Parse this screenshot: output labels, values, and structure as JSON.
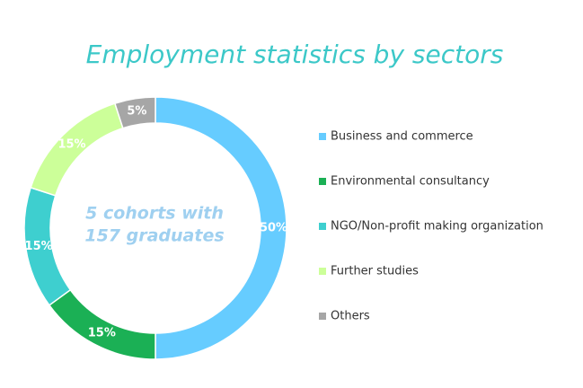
{
  "chart_data": {
    "type": "donut",
    "title": "Employment statistics by sectors",
    "center_text": [
      "5 cohorts with",
      "157 graduates"
    ],
    "categories": [
      "Business and commerce",
      "Environmental consultancy",
      "NGO/Non-profit making organization",
      "Further studies",
      "Others"
    ],
    "values": [
      50,
      15,
      15,
      15,
      5
    ],
    "value_labels": [
      "50%",
      "15%",
      "15%",
      "15%",
      "5%"
    ],
    "colors": [
      "#66ccff",
      "#1bb055",
      "#3ecfcf",
      "#ccff99",
      "#a6a6a6"
    ],
    "legend": "right"
  }
}
